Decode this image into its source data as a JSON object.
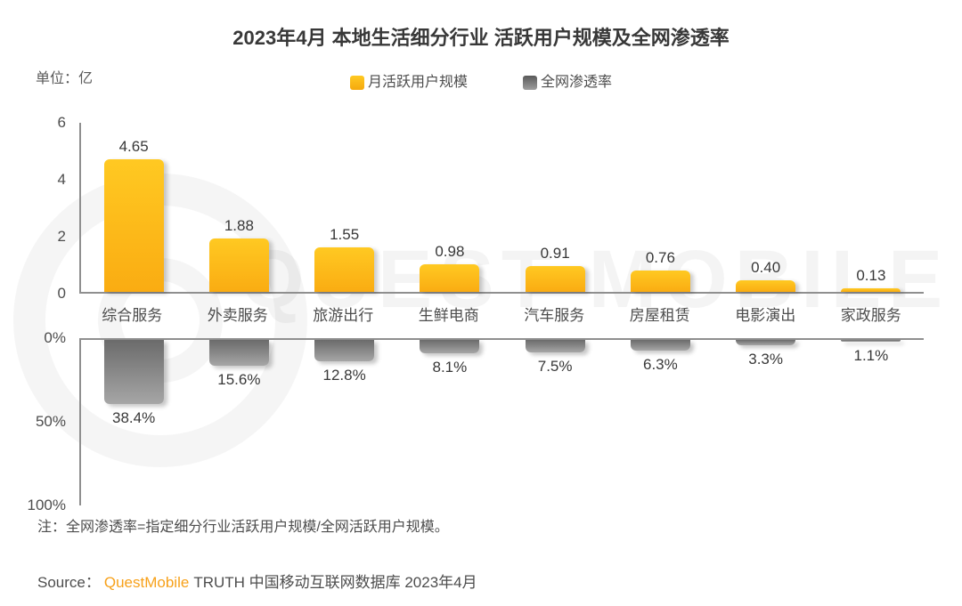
{
  "title": "2023年4月 本地生活细分行业 活跃用户规模及全网渗透率",
  "unit_label": "单位：亿",
  "watermark_text": "QUEST MOBILE",
  "note": "注：全网渗透率=指定细分行业活跃用户规模/全网活跃用户规模。",
  "source": {
    "prefix": "Source：",
    "brand": "QuestMobile",
    "rest": "TRUTH 中国移动互联网数据库 2023年4月"
  },
  "colors": {
    "bar_yellow": "#FDB813",
    "bar_gray": "#8A8A8A",
    "brand_orange": "#F7A11A",
    "axis_line": "#8F8F8F"
  },
  "chart_data": {
    "type": "bar",
    "title": "2023年4月 本地生活细分行业 活跃用户规模及全网渗透率",
    "grid": false,
    "legend_position": "top-center",
    "categories": [
      "综合服务",
      "外卖服务",
      "旅游出行",
      "生鲜电商",
      "汽车服务",
      "房屋租赁",
      "电影演出",
      "家政服务"
    ],
    "series": [
      {
        "name": "月活跃用户规模",
        "unit": "亿",
        "direction": "up",
        "color": "#FDB813",
        "axis_max": 6,
        "axis_ticks": [
          6,
          4,
          2,
          0
        ],
        "tick_labels": [
          "6",
          "4",
          "2",
          "0"
        ],
        "values": [
          4.65,
          1.88,
          1.55,
          0.98,
          0.91,
          0.76,
          0.4,
          0.13
        ],
        "value_labels": [
          "4.65",
          "1.88",
          "1.55",
          "0.98",
          "0.91",
          "0.76",
          "0.40",
          "0.13"
        ]
      },
      {
        "name": "全网渗透率",
        "unit": "%",
        "direction": "down",
        "color": "#8A8A8A",
        "axis_max": 100,
        "axis_ticks": [
          0,
          50,
          100
        ],
        "tick_labels": [
          "0%",
          "50%",
          "100%"
        ],
        "values": [
          38.4,
          15.6,
          12.8,
          8.1,
          7.5,
          6.3,
          3.3,
          1.1
        ],
        "value_labels": [
          "38.4%",
          "15.6%",
          "12.8%",
          "8.1%",
          "7.5%",
          "6.3%",
          "3.3%",
          "1.1%"
        ]
      }
    ]
  }
}
